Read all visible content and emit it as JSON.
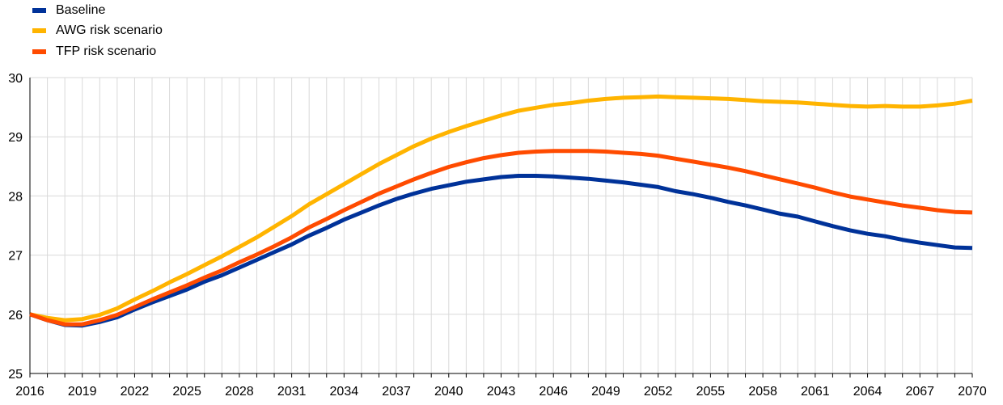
{
  "chart_data": {
    "type": "line",
    "title": "",
    "xlabel": "",
    "ylabel": "",
    "xlim": [
      2016,
      2070
    ],
    "ylim": [
      25,
      30
    ],
    "yticks": [
      25,
      26,
      27,
      28,
      29,
      30
    ],
    "xtick_labels": [
      "2016",
      "2019",
      "2022",
      "2025",
      "2028",
      "2031",
      "2034",
      "2037",
      "2040",
      "2043",
      "2046",
      "2049",
      "2052",
      "2055",
      "2058",
      "2061",
      "2064",
      "2067",
      "2070"
    ],
    "grid": "vertical-and-horizontal",
    "legend_position": "top-left",
    "series": [
      {
        "name": "Baseline",
        "color": "#003299",
        "points": [
          [
            2016,
            26.0
          ],
          [
            2017,
            25.9
          ],
          [
            2018,
            25.82
          ],
          [
            2019,
            25.81
          ],
          [
            2020,
            25.87
          ],
          [
            2021,
            25.95
          ],
          [
            2022,
            26.08
          ],
          [
            2023,
            26.2
          ],
          [
            2024,
            26.31
          ],
          [
            2025,
            26.42
          ],
          [
            2026,
            26.55
          ],
          [
            2027,
            26.66
          ],
          [
            2028,
            26.79
          ],
          [
            2029,
            26.92
          ],
          [
            2030,
            27.05
          ],
          [
            2031,
            27.18
          ],
          [
            2032,
            27.33
          ],
          [
            2033,
            27.46
          ],
          [
            2034,
            27.6
          ],
          [
            2035,
            27.72
          ],
          [
            2036,
            27.84
          ],
          [
            2037,
            27.95
          ],
          [
            2038,
            28.04
          ],
          [
            2039,
            28.12
          ],
          [
            2040,
            28.18
          ],
          [
            2041,
            28.24
          ],
          [
            2042,
            28.28
          ],
          [
            2043,
            28.32
          ],
          [
            2044,
            28.34
          ],
          [
            2045,
            28.34
          ],
          [
            2046,
            28.33
          ],
          [
            2047,
            28.31
          ],
          [
            2048,
            28.29
          ],
          [
            2049,
            28.26
          ],
          [
            2050,
            28.23
          ],
          [
            2051,
            28.19
          ],
          [
            2052,
            28.15
          ],
          [
            2053,
            28.08
          ],
          [
            2054,
            28.03
          ],
          [
            2055,
            27.97
          ],
          [
            2056,
            27.9
          ],
          [
            2057,
            27.84
          ],
          [
            2058,
            27.77
          ],
          [
            2059,
            27.7
          ],
          [
            2060,
            27.65
          ],
          [
            2061,
            27.57
          ],
          [
            2062,
            27.49
          ],
          [
            2063,
            27.42
          ],
          [
            2064,
            27.36
          ],
          [
            2065,
            27.32
          ],
          [
            2066,
            27.26
          ],
          [
            2067,
            27.21
          ],
          [
            2068,
            27.17
          ],
          [
            2069,
            27.13
          ],
          [
            2070,
            27.12
          ]
        ]
      },
      {
        "name": "AWG risk scenario",
        "color": "#FFB400",
        "points": [
          [
            2016,
            26.0
          ],
          [
            2017,
            25.94
          ],
          [
            2018,
            25.9
          ],
          [
            2019,
            25.92
          ],
          [
            2020,
            25.99
          ],
          [
            2021,
            26.1
          ],
          [
            2022,
            26.25
          ],
          [
            2023,
            26.39
          ],
          [
            2024,
            26.54
          ],
          [
            2025,
            26.68
          ],
          [
            2026,
            26.83
          ],
          [
            2027,
            26.98
          ],
          [
            2028,
            27.14
          ],
          [
            2029,
            27.3
          ],
          [
            2030,
            27.48
          ],
          [
            2031,
            27.66
          ],
          [
            2032,
            27.86
          ],
          [
            2033,
            28.03
          ],
          [
            2034,
            28.2
          ],
          [
            2035,
            28.37
          ],
          [
            2036,
            28.54
          ],
          [
            2037,
            28.69
          ],
          [
            2038,
            28.84
          ],
          [
            2039,
            28.97
          ],
          [
            2040,
            29.08
          ],
          [
            2041,
            29.18
          ],
          [
            2042,
            29.27
          ],
          [
            2043,
            29.36
          ],
          [
            2044,
            29.44
          ],
          [
            2045,
            29.49
          ],
          [
            2046,
            29.54
          ],
          [
            2047,
            29.57
          ],
          [
            2048,
            29.61
          ],
          [
            2049,
            29.64
          ],
          [
            2050,
            29.66
          ],
          [
            2051,
            29.67
          ],
          [
            2052,
            29.68
          ],
          [
            2053,
            29.67
          ],
          [
            2054,
            29.66
          ],
          [
            2055,
            29.65
          ],
          [
            2056,
            29.64
          ],
          [
            2057,
            29.62
          ],
          [
            2058,
            29.6
          ],
          [
            2059,
            29.59
          ],
          [
            2060,
            29.58
          ],
          [
            2061,
            29.56
          ],
          [
            2062,
            29.54
          ],
          [
            2063,
            29.52
          ],
          [
            2064,
            29.51
          ],
          [
            2065,
            29.52
          ],
          [
            2066,
            29.51
          ],
          [
            2067,
            29.51
          ],
          [
            2068,
            29.53
          ],
          [
            2069,
            29.56
          ],
          [
            2070,
            29.61
          ]
        ]
      },
      {
        "name": "TFP risk scenario",
        "color": "#FF4B00",
        "points": [
          [
            2016,
            26.0
          ],
          [
            2017,
            25.9
          ],
          [
            2018,
            25.83
          ],
          [
            2019,
            25.83
          ],
          [
            2020,
            25.9
          ],
          [
            2021,
            25.99
          ],
          [
            2022,
            26.12
          ],
          [
            2023,
            26.25
          ],
          [
            2024,
            26.37
          ],
          [
            2025,
            26.49
          ],
          [
            2026,
            26.62
          ],
          [
            2027,
            26.74
          ],
          [
            2028,
            26.88
          ],
          [
            2029,
            27.01
          ],
          [
            2030,
            27.15
          ],
          [
            2031,
            27.3
          ],
          [
            2032,
            27.47
          ],
          [
            2033,
            27.61
          ],
          [
            2034,
            27.76
          ],
          [
            2035,
            27.9
          ],
          [
            2036,
            28.04
          ],
          [
            2037,
            28.16
          ],
          [
            2038,
            28.28
          ],
          [
            2039,
            28.39
          ],
          [
            2040,
            28.49
          ],
          [
            2041,
            28.57
          ],
          [
            2042,
            28.64
          ],
          [
            2043,
            28.69
          ],
          [
            2044,
            28.73
          ],
          [
            2045,
            28.75
          ],
          [
            2046,
            28.76
          ],
          [
            2047,
            28.76
          ],
          [
            2048,
            28.76
          ],
          [
            2049,
            28.75
          ],
          [
            2050,
            28.73
          ],
          [
            2051,
            28.71
          ],
          [
            2052,
            28.68
          ],
          [
            2053,
            28.63
          ],
          [
            2054,
            28.58
          ],
          [
            2055,
            28.53
          ],
          [
            2056,
            28.48
          ],
          [
            2057,
            28.42
          ],
          [
            2058,
            28.35
          ],
          [
            2059,
            28.28
          ],
          [
            2060,
            28.21
          ],
          [
            2061,
            28.14
          ],
          [
            2062,
            28.06
          ],
          [
            2063,
            27.99
          ],
          [
            2064,
            27.94
          ],
          [
            2065,
            27.89
          ],
          [
            2066,
            27.84
          ],
          [
            2067,
            27.8
          ],
          [
            2068,
            27.76
          ],
          [
            2069,
            27.73
          ],
          [
            2070,
            27.72
          ]
        ]
      }
    ]
  }
}
